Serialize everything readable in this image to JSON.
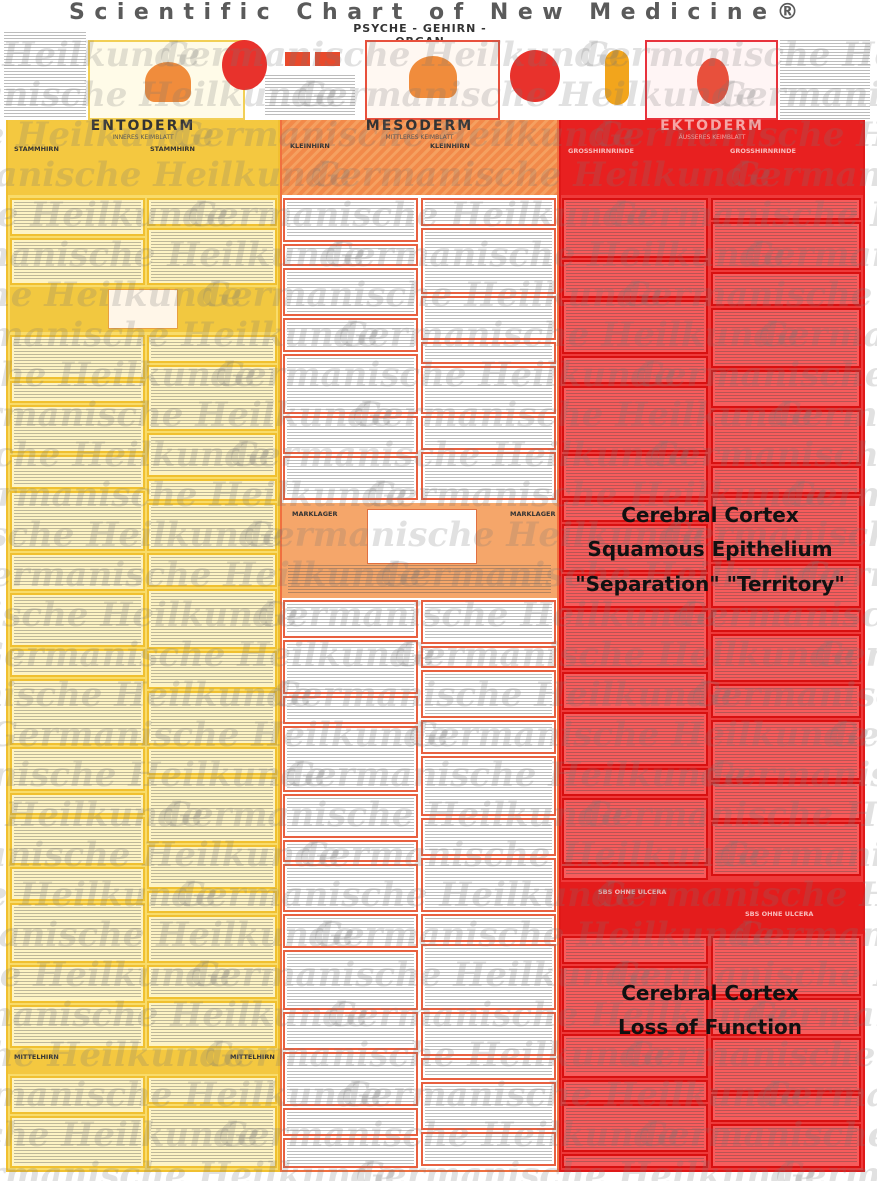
{
  "header": {
    "title": "Scientific Chart of New Medicine®",
    "subtitle": "PSYCHE - GEHIRN - ORGAN"
  },
  "columns": [
    {
      "name": "ENTODERM",
      "subtitle": "INNERES KEIMBLATT",
      "sections": [
        "STAMMHIRN",
        "STAMMHIRN",
        "MITTELHIRN",
        "MITTELHIRN"
      ]
    },
    {
      "name": "MESODERM",
      "subtitle": "MITTLERES KEIMBLATT",
      "sections": [
        "KLEINHIRN",
        "KLEINHIRN",
        "MARKLAGER",
        "MARKLAGER"
      ]
    },
    {
      "name": "EKTODERM",
      "subtitle": "ÄUSSERES KEIMBLATT",
      "sections": [
        "GROSSHIRNRINDE",
        "GROSSHIRNRINDE",
        "SBS OHNE ULCERA",
        "SBS OHNE ULCERA"
      ]
    }
  ],
  "annotations": [
    {
      "lines": [
        "Cerebral Cortex",
        "Squamous Epithelium",
        "\"Separation\" \"Territory\""
      ]
    },
    {
      "lines": [
        "Cerebral Cortex",
        "Loss of Function"
      ]
    }
  ],
  "watermark": "Germanische Heilkunde"
}
